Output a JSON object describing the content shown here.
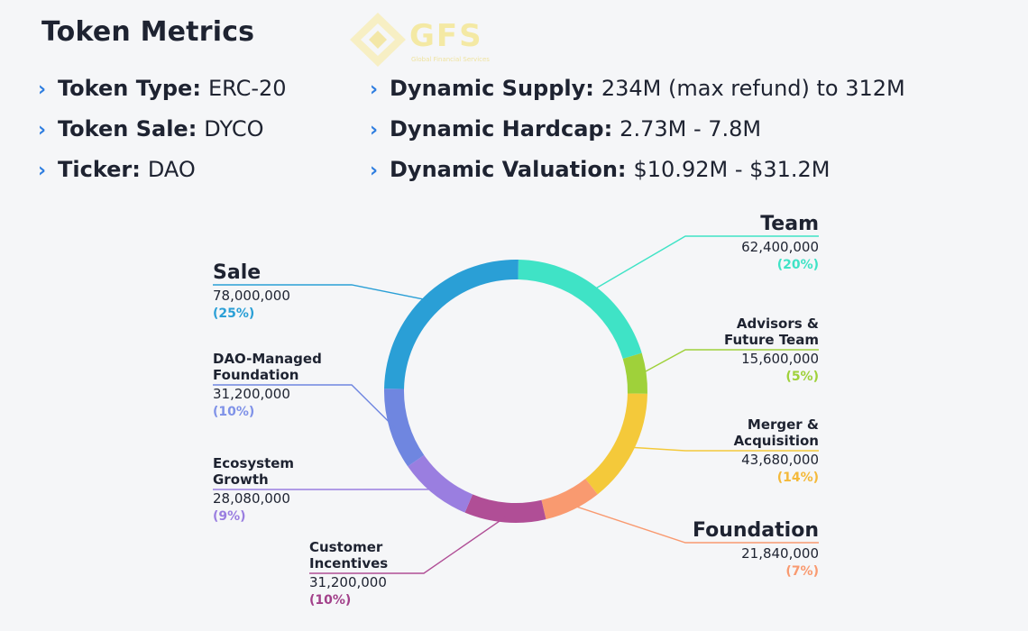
{
  "page_title": "Token Metrics",
  "logo": {
    "text": "GFS",
    "subtitle": "Global Financial Services"
  },
  "metrics_left": [
    {
      "key": "Token Type:",
      "value": "ERC-20"
    },
    {
      "key": "Token Sale:",
      "value": "DYCO"
    },
    {
      "key": "Ticker:",
      "value": "DAO"
    }
  ],
  "metrics_right": [
    {
      "key": "Dynamic Supply:",
      "value": "234M (max refund) to 312M"
    },
    {
      "key": "Dynamic Hardcap:",
      "value": "2.73M - 7.8M"
    },
    {
      "key": "Dynamic Valuation:",
      "value": "$10.92M - $31.2M"
    }
  ],
  "icons": {
    "bullet": "chevron-right-icon",
    "logo": "gfs-logo-icon"
  },
  "chart_data": {
    "type": "pie",
    "variant": "donut",
    "slices": [
      {
        "name": "Team",
        "amount": "62,400,000",
        "percent_label": "(20%)",
        "percent": 20,
        "color": "#3fe3c6"
      },
      {
        "name": "Advisors &\nFuture Team",
        "amount": "15,600,000",
        "percent_label": "(5%)",
        "percent": 5,
        "color": "#9fd13a"
      },
      {
        "name": "Merger &\nAcquisition",
        "amount": "43,680,000",
        "percent_label": "(14%)",
        "percent": 14,
        "color": "#f4c93a"
      },
      {
        "name": "Foundation",
        "amount": "21,840,000",
        "percent_label": "(7%)",
        "percent": 7,
        "color": "#f99a70"
      },
      {
        "name": "Customer\nIncentives",
        "amount": "31,200,000",
        "percent_label": "(10%)",
        "percent": 10,
        "color": "#b04e96"
      },
      {
        "name": "Ecosystem\nGrowth",
        "amount": "28,080,000",
        "percent_label": "(9%)",
        "percent": 9,
        "color": "#9a7ee0"
      },
      {
        "name": "DAO-Managed\nFoundation",
        "amount": "31,200,000",
        "percent_label": "(10%)",
        "percent": 10,
        "color": "#6f86e0"
      },
      {
        "name": "Sale",
        "amount": "78,000,000",
        "percent_label": "(25%)",
        "percent": 25,
        "color": "#2a9fd6"
      }
    ],
    "pct_colors": {
      "Team": "#3fe3c6",
      "Advisors &\nFuture Team": "#9fd13a",
      "Merger &\nAcquisition": "#f4b93a",
      "Foundation": "#f99a70",
      "Customer\nIncentives": "#a2408a",
      "Ecosystem\nGrowth": "#9a7ee0",
      "DAO-Managed\nFoundation": "#7f92e8",
      "Sale": "#2a9fd6"
    }
  }
}
